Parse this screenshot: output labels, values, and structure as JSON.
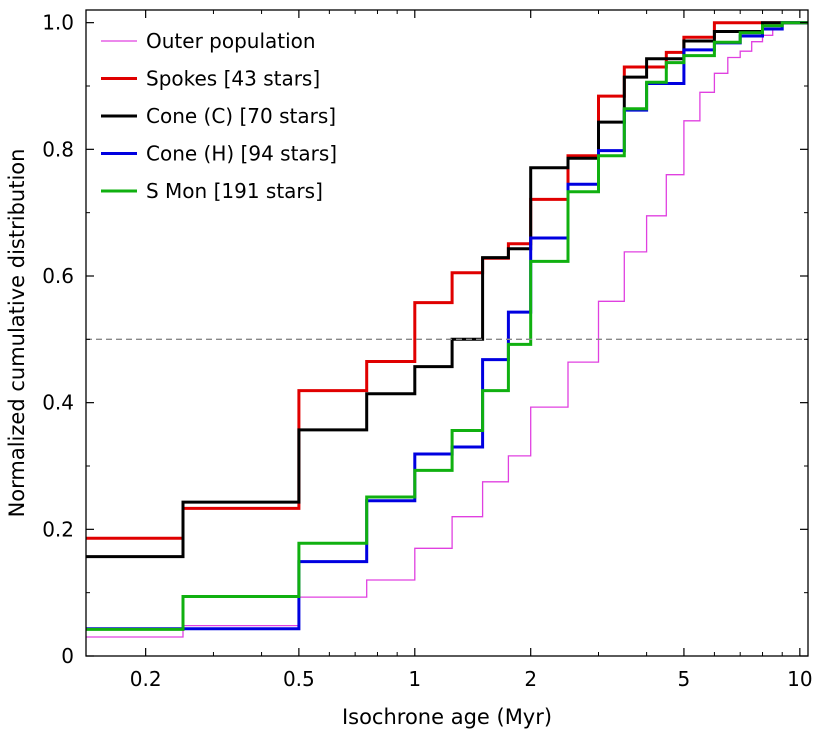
{
  "chart_data": {
    "type": "line",
    "step": true,
    "xscale": "log",
    "xlabel": "Isochrone age (Myr)",
    "ylabel": "Normalized cumulative distribution",
    "xlim": [
      0.14,
      10.5
    ],
    "ylim": [
      0,
      1.02
    ],
    "xticks": [
      {
        "value": 0.2,
        "label": "0.2"
      },
      {
        "value": 0.5,
        "label": "0.5"
      },
      {
        "value": 1,
        "label": "1"
      },
      {
        "value": 2,
        "label": "2"
      },
      {
        "value": 5,
        "label": "5"
      },
      {
        "value": 10,
        "label": "10"
      }
    ],
    "yticks": [
      {
        "value": 0,
        "label": "0"
      },
      {
        "value": 0.2,
        "label": "0.2"
      },
      {
        "value": 0.4,
        "label": "0.4"
      },
      {
        "value": 0.6,
        "label": "0.6"
      },
      {
        "value": 0.8,
        "label": "0.8"
      },
      {
        "value": 1.0,
        "label": "1.0"
      }
    ],
    "reference_line": {
      "y": 0.5,
      "style": "dashed",
      "color": "#888888"
    },
    "legend_position": "top-left",
    "series": [
      {
        "name": "Outer population",
        "color": "#e040e0",
        "width": 1.3,
        "points": [
          [
            0.14,
            0.03
          ],
          [
            0.25,
            0.03
          ],
          [
            0.25,
            0.048
          ],
          [
            0.5,
            0.048
          ],
          [
            0.5,
            0.093
          ],
          [
            0.75,
            0.093
          ],
          [
            0.75,
            0.12
          ],
          [
            1.0,
            0.12
          ],
          [
            1.0,
            0.17
          ],
          [
            1.25,
            0.17
          ],
          [
            1.25,
            0.22
          ],
          [
            1.5,
            0.22
          ],
          [
            1.5,
            0.275
          ],
          [
            1.75,
            0.275
          ],
          [
            1.75,
            0.316
          ],
          [
            2.0,
            0.316
          ],
          [
            2.0,
            0.393
          ],
          [
            2.5,
            0.393
          ],
          [
            2.5,
            0.464
          ],
          [
            3.0,
            0.464
          ],
          [
            3.0,
            0.56
          ],
          [
            3.5,
            0.56
          ],
          [
            3.5,
            0.638
          ],
          [
            4.0,
            0.638
          ],
          [
            4.0,
            0.695
          ],
          [
            4.5,
            0.695
          ],
          [
            4.5,
            0.76
          ],
          [
            5.0,
            0.76
          ],
          [
            5.0,
            0.845
          ],
          [
            5.5,
            0.845
          ],
          [
            5.5,
            0.89
          ],
          [
            6.0,
            0.89
          ],
          [
            6.0,
            0.92
          ],
          [
            6.5,
            0.92
          ],
          [
            6.5,
            0.945
          ],
          [
            7.0,
            0.945
          ],
          [
            7.0,
            0.955
          ],
          [
            7.5,
            0.955
          ],
          [
            7.5,
            0.97
          ],
          [
            8.0,
            0.97
          ],
          [
            8.0,
            0.98
          ],
          [
            8.5,
            0.98
          ],
          [
            8.5,
            0.99
          ],
          [
            9.0,
            0.99
          ],
          [
            9.0,
            1.0
          ],
          [
            10.5,
            1.0
          ]
        ]
      },
      {
        "name": "Spokes [43 stars]",
        "color": "#e00000",
        "width": 3,
        "points": [
          [
            0.14,
            0.186
          ],
          [
            0.25,
            0.186
          ],
          [
            0.25,
            0.233
          ],
          [
            0.5,
            0.233
          ],
          [
            0.5,
            0.419
          ],
          [
            0.75,
            0.419
          ],
          [
            0.75,
            0.465
          ],
          [
            1.0,
            0.465
          ],
          [
            1.0,
            0.558
          ],
          [
            1.25,
            0.558
          ],
          [
            1.25,
            0.605
          ],
          [
            1.5,
            0.605
          ],
          [
            1.5,
            0.628
          ],
          [
            1.75,
            0.628
          ],
          [
            1.75,
            0.651
          ],
          [
            2.0,
            0.651
          ],
          [
            2.0,
            0.721
          ],
          [
            2.5,
            0.721
          ],
          [
            2.5,
            0.79
          ],
          [
            3.0,
            0.79
          ],
          [
            3.0,
            0.884
          ],
          [
            3.5,
            0.884
          ],
          [
            3.5,
            0.93
          ],
          [
            4.0,
            0.93
          ],
          [
            4.0,
            0.93
          ],
          [
            4.5,
            0.93
          ],
          [
            4.5,
            0.953
          ],
          [
            5.0,
            0.953
          ],
          [
            5.0,
            0.977
          ],
          [
            6.0,
            0.977
          ],
          [
            6.0,
            1.0
          ],
          [
            10.5,
            1.0
          ]
        ]
      },
      {
        "name": "Cone (C) [70 stars]",
        "color": "#000000",
        "width": 3,
        "points": [
          [
            0.14,
            0.157
          ],
          [
            0.25,
            0.157
          ],
          [
            0.25,
            0.243
          ],
          [
            0.5,
            0.243
          ],
          [
            0.5,
            0.357
          ],
          [
            0.75,
            0.357
          ],
          [
            0.75,
            0.414
          ],
          [
            1.0,
            0.414
          ],
          [
            1.0,
            0.457
          ],
          [
            1.25,
            0.457
          ],
          [
            1.25,
            0.5
          ],
          [
            1.5,
            0.5
          ],
          [
            1.5,
            0.629
          ],
          [
            1.75,
            0.629
          ],
          [
            1.75,
            0.643
          ],
          [
            2.0,
            0.643
          ],
          [
            2.0,
            0.771
          ],
          [
            2.5,
            0.771
          ],
          [
            2.5,
            0.786
          ],
          [
            3.0,
            0.786
          ],
          [
            3.0,
            0.843
          ],
          [
            3.5,
            0.843
          ],
          [
            3.5,
            0.914
          ],
          [
            4.0,
            0.914
          ],
          [
            4.0,
            0.943
          ],
          [
            5.0,
            0.943
          ],
          [
            5.0,
            0.971
          ],
          [
            6.0,
            0.971
          ],
          [
            6.0,
            0.986
          ],
          [
            8.0,
            0.986
          ],
          [
            8.0,
            1.0
          ],
          [
            10.5,
            1.0
          ]
        ]
      },
      {
        "name": "Cone (H) [94 stars]",
        "color": "#0000e0",
        "width": 3,
        "points": [
          [
            0.14,
            0.043
          ],
          [
            0.25,
            0.043
          ],
          [
            0.25,
            0.043
          ],
          [
            0.5,
            0.043
          ],
          [
            0.5,
            0.149
          ],
          [
            0.75,
            0.149
          ],
          [
            0.75,
            0.245
          ],
          [
            1.0,
            0.245
          ],
          [
            1.0,
            0.319
          ],
          [
            1.25,
            0.319
          ],
          [
            1.25,
            0.33
          ],
          [
            1.5,
            0.33
          ],
          [
            1.5,
            0.468
          ],
          [
            1.75,
            0.468
          ],
          [
            1.75,
            0.543
          ],
          [
            2.0,
            0.543
          ],
          [
            2.0,
            0.66
          ],
          [
            2.5,
            0.66
          ],
          [
            2.5,
            0.745
          ],
          [
            3.0,
            0.745
          ],
          [
            3.0,
            0.798
          ],
          [
            3.5,
            0.798
          ],
          [
            3.5,
            0.862
          ],
          [
            4.0,
            0.862
          ],
          [
            4.0,
            0.904
          ],
          [
            5.0,
            0.904
          ],
          [
            5.0,
            0.957
          ],
          [
            6.0,
            0.957
          ],
          [
            6.0,
            0.968
          ],
          [
            7.0,
            0.968
          ],
          [
            7.0,
            0.979
          ],
          [
            8.0,
            0.979
          ],
          [
            8.0,
            0.99
          ],
          [
            9.0,
            0.99
          ],
          [
            9.0,
            1.0
          ],
          [
            10.5,
            1.0
          ]
        ]
      },
      {
        "name": "S Mon [191 stars]",
        "color": "#10b010",
        "width": 3,
        "points": [
          [
            0.14,
            0.042
          ],
          [
            0.25,
            0.042
          ],
          [
            0.25,
            0.094
          ],
          [
            0.5,
            0.094
          ],
          [
            0.5,
            0.178
          ],
          [
            0.75,
            0.178
          ],
          [
            0.75,
            0.251
          ],
          [
            1.0,
            0.251
          ],
          [
            1.0,
            0.293
          ],
          [
            1.25,
            0.293
          ],
          [
            1.25,
            0.356
          ],
          [
            1.5,
            0.356
          ],
          [
            1.5,
            0.419
          ],
          [
            1.75,
            0.419
          ],
          [
            1.75,
            0.492
          ],
          [
            2.0,
            0.492
          ],
          [
            2.0,
            0.623
          ],
          [
            2.5,
            0.623
          ],
          [
            2.5,
            0.733
          ],
          [
            3.0,
            0.733
          ],
          [
            3.0,
            0.79
          ],
          [
            3.5,
            0.79
          ],
          [
            3.5,
            0.864
          ],
          [
            4.0,
            0.864
          ],
          [
            4.0,
            0.906
          ],
          [
            4.5,
            0.906
          ],
          [
            4.5,
            0.937
          ],
          [
            5.0,
            0.937
          ],
          [
            5.0,
            0.948
          ],
          [
            6.0,
            0.948
          ],
          [
            6.0,
            0.969
          ],
          [
            7.0,
            0.969
          ],
          [
            7.0,
            0.984
          ],
          [
            8.0,
            0.984
          ],
          [
            8.0,
            0.995
          ],
          [
            9.0,
            0.995
          ],
          [
            9.0,
            1.0
          ],
          [
            10.5,
            1.0
          ]
        ]
      }
    ]
  }
}
